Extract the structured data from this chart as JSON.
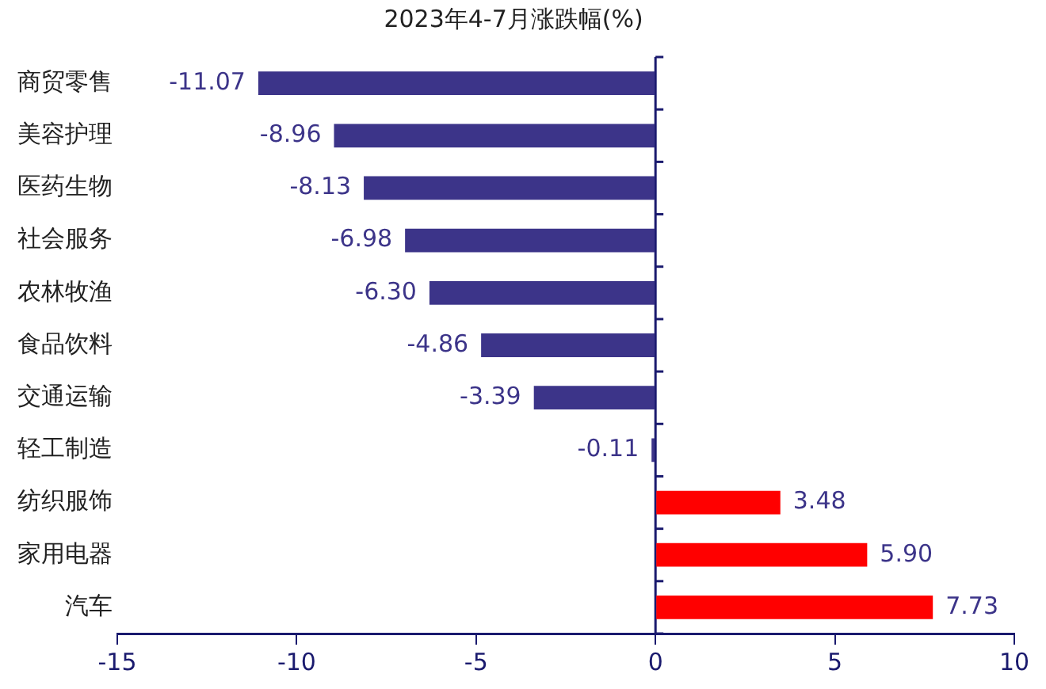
{
  "chart_data": {
    "type": "bar",
    "orientation": "horizontal",
    "title": "2023年4-7月涨跌幅(%)",
    "categories": [
      "商贸零售",
      "美容护理",
      "医药生物",
      "社会服务",
      "农林牧渔",
      "食品饮料",
      "交通运输",
      "轻工制造",
      "纺织服饰",
      "家用电器",
      "汽车"
    ],
    "values": [
      -11.07,
      -8.96,
      -8.13,
      -6.98,
      -6.3,
      -4.86,
      -3.39,
      -0.11,
      3.48,
      5.9,
      7.73
    ],
    "value_labels": [
      "-11.07",
      "-8.96",
      "-8.13",
      "-6.98",
      "-6.30",
      "-4.86",
      "-3.39",
      "-0.11",
      "3.48",
      "5.90",
      "7.73"
    ],
    "colors": [
      "#3c3489",
      "#3c3489",
      "#3c3489",
      "#3c3489",
      "#3c3489",
      "#3c3489",
      "#3c3489",
      "#3c3489",
      "#ff0000",
      "#ff0000",
      "#ff0000"
    ],
    "ref_lines": [
      {
        "axis": "x",
        "value": 0,
        "color": "#1a1a6e"
      }
    ],
    "xlim": [
      -15,
      10
    ],
    "xticks": [
      -15,
      -10,
      -5,
      0,
      5,
      10
    ],
    "grid": false,
    "legend": false
  }
}
